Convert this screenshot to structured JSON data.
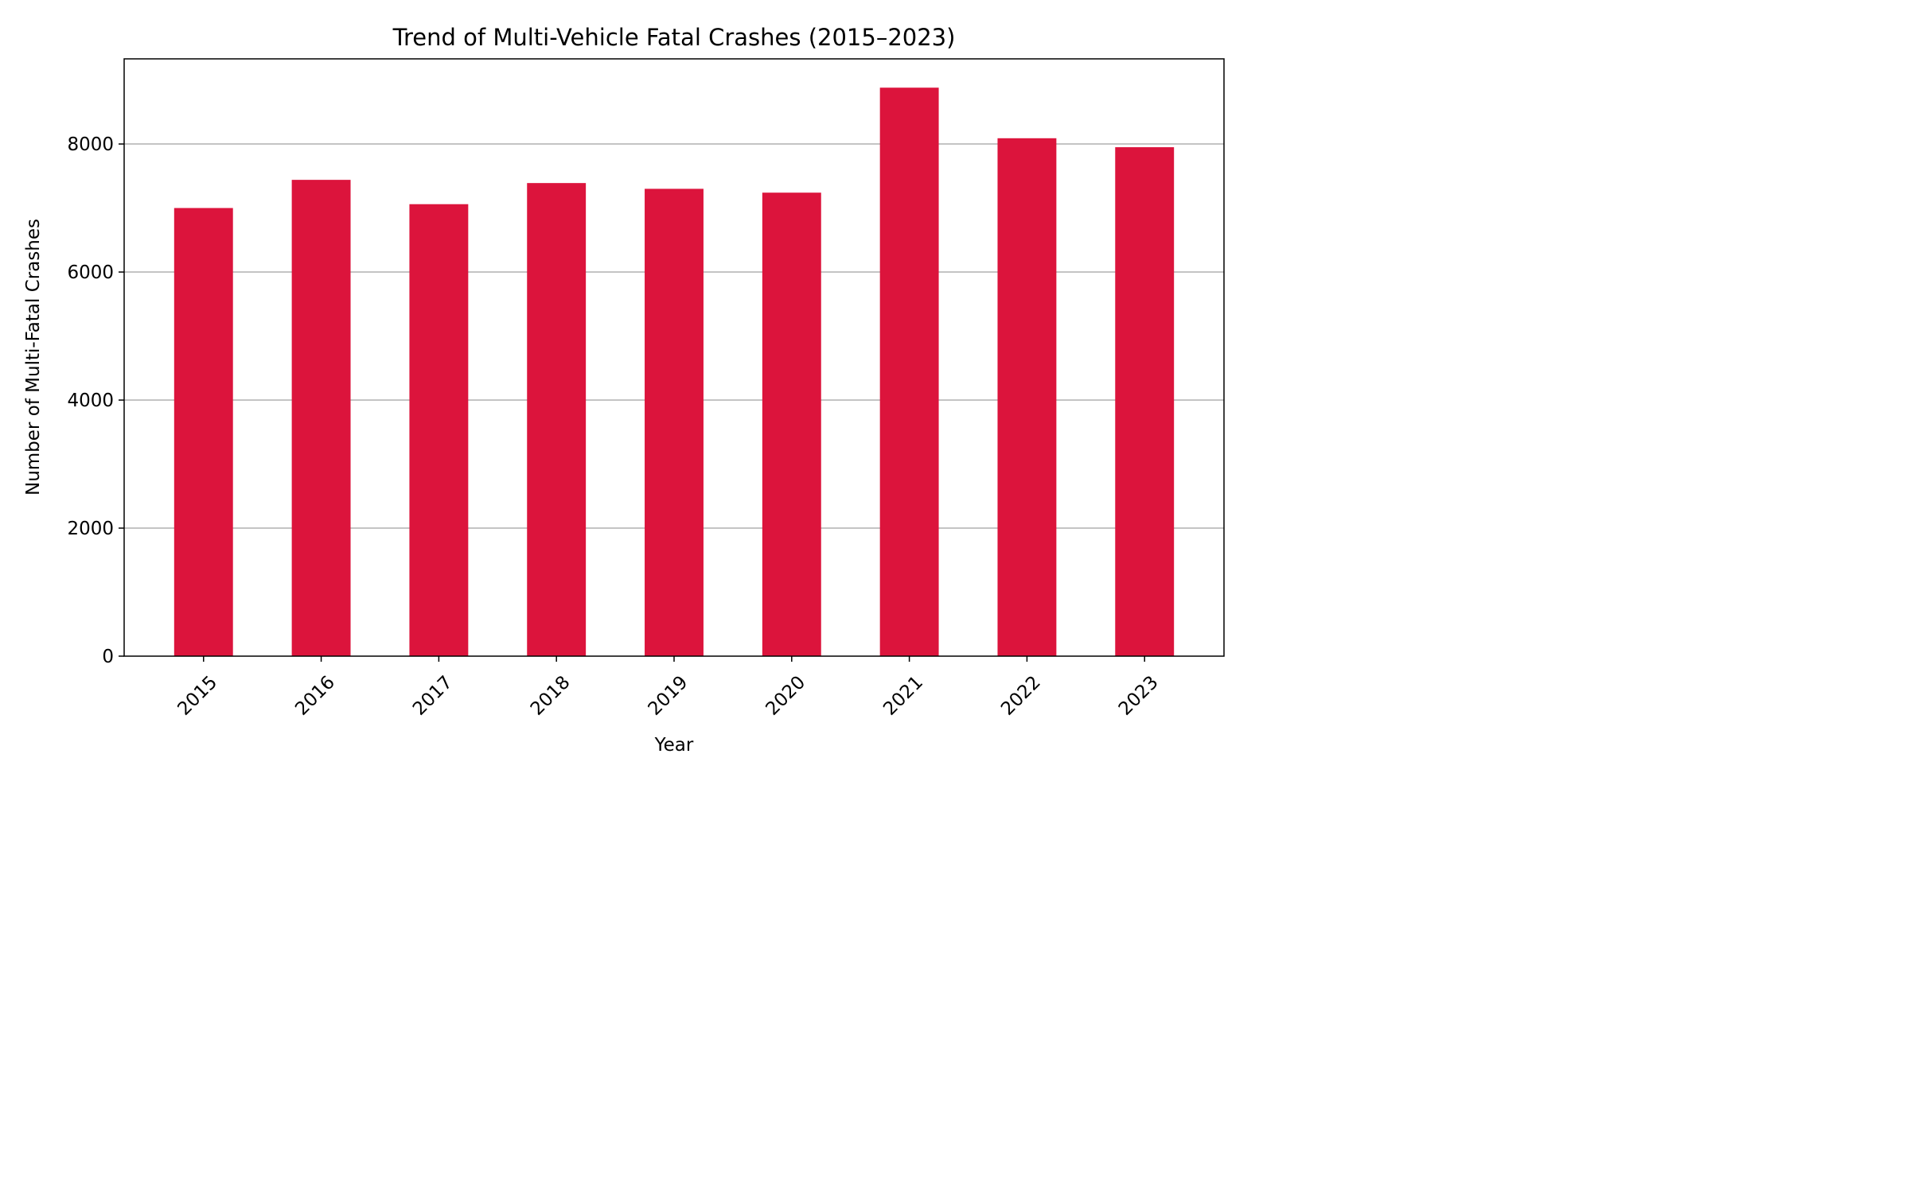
{
  "chart_data": {
    "type": "bar",
    "title": "Trend of Multi-Vehicle Fatal Crashes (2015–2023)",
    "xlabel": "Year",
    "ylabel": "Number of Multi-Fatal Crashes",
    "categories": [
      "2015",
      "2016",
      "2017",
      "2018",
      "2019",
      "2020",
      "2021",
      "2022",
      "2023"
    ],
    "values": [
      7000,
      7440,
      7060,
      7390,
      7300,
      7240,
      8880,
      8090,
      7950
    ],
    "ylim": [
      0,
      9330
    ],
    "yticks": [
      0,
      2000,
      4000,
      6000,
      8000
    ],
    "grid": "y",
    "bar_color": "#dc143c",
    "grid_color": "#b0b0b0"
  }
}
